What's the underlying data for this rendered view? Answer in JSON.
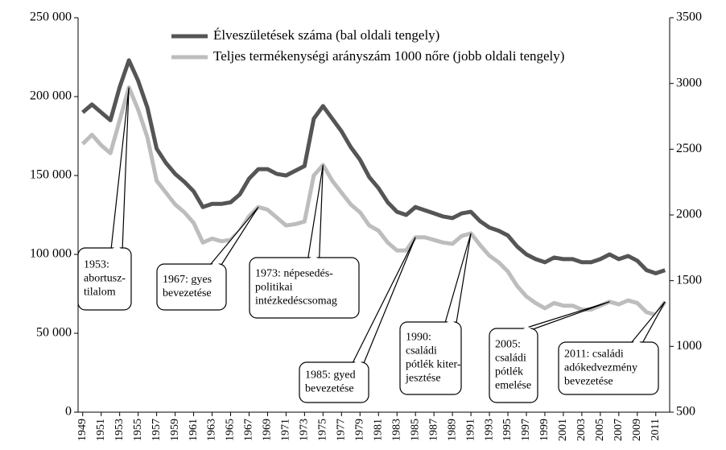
{
  "chart_data": {
    "type": "line",
    "x": [
      1949,
      1950,
      1951,
      1952,
      1953,
      1954,
      1955,
      1956,
      1957,
      1958,
      1959,
      1960,
      1961,
      1962,
      1963,
      1964,
      1965,
      1966,
      1967,
      1968,
      1969,
      1970,
      1971,
      1972,
      1973,
      1974,
      1975,
      1976,
      1977,
      1978,
      1979,
      1980,
      1981,
      1982,
      1983,
      1984,
      1985,
      1986,
      1987,
      1988,
      1989,
      1990,
      1991,
      1992,
      1993,
      1994,
      1995,
      1996,
      1997,
      1998,
      1999,
      2000,
      2001,
      2002,
      2003,
      2004,
      2005,
      2006,
      2007,
      2008,
      2009,
      2010,
      2011,
      2012
    ],
    "xticks": [
      1949,
      1951,
      1953,
      1955,
      1957,
      1959,
      1961,
      1963,
      1965,
      1967,
      1969,
      1971,
      1973,
      1975,
      1977,
      1979,
      1981,
      1983,
      1985,
      1987,
      1989,
      1991,
      1993,
      1995,
      1997,
      1999,
      2001,
      2003,
      2005,
      2007,
      2009,
      2011
    ],
    "xlim": [
      1948.5,
      2012.5
    ],
    "series": [
      {
        "name": "Élveszületések száma (bal oldali tengely)",
        "color": "#555555",
        "axis": "y",
        "values": [
          190000,
          195000,
          190000,
          185000,
          206000,
          223000,
          210000,
          193000,
          167000,
          158000,
          151000,
          146000,
          140000,
          130000,
          132000,
          132000,
          133000,
          138000,
          148000,
          154000,
          154000,
          151000,
          150000,
          153000,
          156000,
          186000,
          194000,
          186000,
          178000,
          168000,
          160000,
          149000,
          142000,
          133000,
          127000,
          125000,
          130000,
          128000,
          126000,
          124000,
          123000,
          126000,
          127000,
          121000,
          117000,
          115000,
          112000,
          105000,
          100000,
          97000,
          95000,
          98000,
          97000,
          97000,
          95000,
          95000,
          97000,
          100000,
          97000,
          99000,
          96000,
          90000,
          88000,
          90000
        ]
      },
      {
        "name": "Teljes termékenységi arányszám 1000 nőre (jobb oldali tengely)",
        "color": "#bdbdbd",
        "axis": "y2",
        "values": [
          2540,
          2610,
          2530,
          2470,
          2720,
          2970,
          2800,
          2590,
          2260,
          2170,
          2080,
          2020,
          1940,
          1790,
          1820,
          1800,
          1810,
          1880,
          1990,
          2060,
          2040,
          1980,
          1920,
          1930,
          1950,
          2300,
          2380,
          2260,
          2170,
          2080,
          2020,
          1920,
          1880,
          1790,
          1730,
          1730,
          1830,
          1830,
          1810,
          1790,
          1780,
          1840,
          1860,
          1770,
          1690,
          1640,
          1570,
          1460,
          1380,
          1330,
          1290,
          1330,
          1310,
          1310,
          1280,
          1280,
          1310,
          1340,
          1320,
          1350,
          1330,
          1260,
          1240,
          1340
        ]
      }
    ],
    "ylim": [
      0,
      250000
    ],
    "yticks": [
      0,
      {
        "value": 50000,
        "label": "50 000"
      },
      {
        "value": 100000,
        "label": "100 000"
      },
      {
        "value": 150000,
        "label": "150 000"
      },
      {
        "value": 200000,
        "label": "200 000"
      },
      {
        "value": 250000,
        "label": "250 000"
      }
    ],
    "y2lim": [
      500,
      3500
    ],
    "y2ticks": [
      500,
      1000,
      1500,
      2000,
      2500,
      3000,
      3500
    ],
    "annotations": [
      {
        "text": [
          "1953:",
          "abortusz-",
          "tilalom"
        ],
        "x": 1954
      },
      {
        "text": [
          "1967: gyes",
          "bevezetése"
        ],
        "x": 1968
      },
      {
        "text": [
          "1973: népesedés-",
          "politikai",
          "intézkedéscsomag"
        ],
        "x": 1975
      },
      {
        "text": [
          "1985: gyed",
          "bevezetése"
        ],
        "x": 1985
      },
      {
        "text": [
          "1990:",
          "családi",
          "pótlék kiter-",
          "jesztése"
        ],
        "x": 1991
      },
      {
        "text": [
          "2005:",
          "családi",
          "pótlék",
          "emelése"
        ],
        "x": 2006
      },
      {
        "text": [
          "2011: családi",
          "adókedvezmény",
          "bevezetése"
        ],
        "x": 2012
      }
    ]
  }
}
